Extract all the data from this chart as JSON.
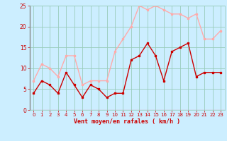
{
  "x": [
    0,
    1,
    2,
    3,
    4,
    5,
    6,
    7,
    8,
    9,
    10,
    11,
    12,
    13,
    14,
    15,
    16,
    17,
    18,
    19,
    20,
    21,
    22,
    23
  ],
  "wind_mean": [
    4,
    7,
    6,
    4,
    9,
    6,
    3,
    6,
    5,
    3,
    4,
    4,
    12,
    13,
    16,
    13,
    7,
    14,
    15,
    16,
    8,
    9,
    9,
    9
  ],
  "wind_gust": [
    7,
    11,
    10,
    8,
    13,
    13,
    6,
    7,
    7,
    7,
    14,
    17,
    20,
    25,
    24,
    25,
    24,
    23,
    23,
    22,
    23,
    17,
    17,
    19
  ],
  "wind_mean_color": "#cc0000",
  "wind_gust_color": "#ffaaaa",
  "background_color": "#cceeff",
  "grid_color": "#99ccbb",
  "xlabel": "Vent moyen/en rafales ( km/h )",
  "xlabel_color": "#cc0000",
  "tick_color": "#cc0000",
  "ylim": [
    0,
    25
  ],
  "xlim": [
    -0.5,
    23.5
  ],
  "yticks": [
    0,
    5,
    10,
    15,
    20,
    25
  ],
  "xticks": [
    0,
    1,
    2,
    3,
    4,
    5,
    6,
    7,
    8,
    9,
    10,
    11,
    12,
    13,
    14,
    15,
    16,
    17,
    18,
    19,
    20,
    21,
    22,
    23
  ]
}
